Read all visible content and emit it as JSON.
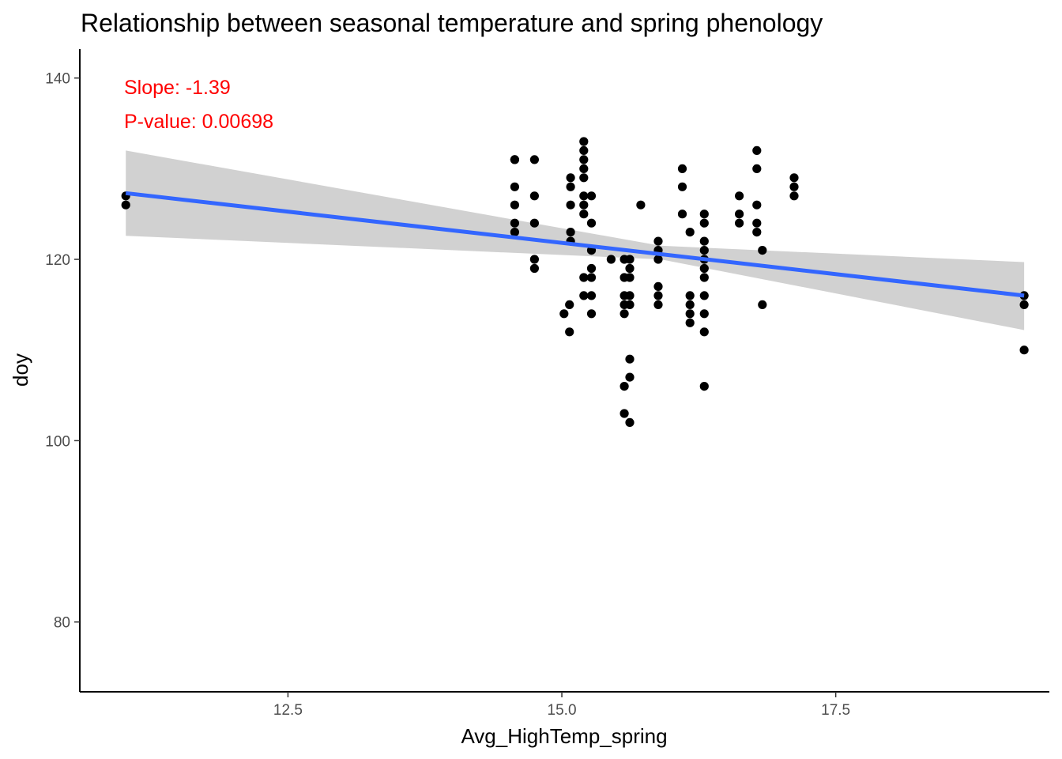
{
  "chart_data": {
    "type": "scatter",
    "title": "Relationship between seasonal temperature and spring phenology",
    "xlabel": "Avg_HighTemp_spring",
    "ylabel": "doy",
    "xlim": [
      10.6,
      19.45
    ],
    "ylim": [
      72.3,
      143.2
    ],
    "xticks": [
      12.5,
      15.0,
      17.5
    ],
    "xtick_labels": [
      "12.5",
      "15.0",
      "17.5"
    ],
    "yticks": [
      80,
      100,
      120,
      140
    ],
    "ytick_labels": [
      "80",
      "100",
      "120",
      "140"
    ],
    "grid": false,
    "colors": {
      "points": "#000000",
      "fit_line": "#3366ff",
      "ribbon": "#cccccc",
      "annotation": "#ff0000"
    },
    "fit": {
      "x": [
        11.02,
        19.22
      ],
      "y": [
        127.3,
        116.0
      ],
      "ci_lower": [
        122.6,
        112.2
      ],
      "ci_upper": [
        132.0,
        119.7
      ],
      "ci_x_mid": 15.9,
      "ci_mid_lower": 120.0,
      "ci_mid_upper": 121.5
    },
    "annotations": [
      {
        "label": "Slope: -1.39"
      },
      {
        "label": "P-value: 0.00698"
      }
    ],
    "points": [
      [
        11.02,
        127
      ],
      [
        11.02,
        126
      ],
      [
        14.57,
        131
      ],
      [
        14.57,
        131
      ],
      [
        14.57,
        128
      ],
      [
        14.57,
        126
      ],
      [
        14.57,
        124
      ],
      [
        14.57,
        123
      ],
      [
        14.75,
        131
      ],
      [
        14.75,
        127
      ],
      [
        14.75,
        124
      ],
      [
        14.75,
        120
      ],
      [
        14.75,
        119
      ],
      [
        15.02,
        114
      ],
      [
        15.07,
        115
      ],
      [
        15.07,
        112
      ],
      [
        15.08,
        129
      ],
      [
        15.08,
        128
      ],
      [
        15.08,
        126
      ],
      [
        15.08,
        123
      ],
      [
        15.08,
        122
      ],
      [
        15.2,
        133
      ],
      [
        15.2,
        132
      ],
      [
        15.2,
        131
      ],
      [
        15.2,
        130
      ],
      [
        15.2,
        129
      ],
      [
        15.2,
        127
      ],
      [
        15.2,
        126
      ],
      [
        15.2,
        125
      ],
      [
        15.2,
        118
      ],
      [
        15.2,
        116
      ],
      [
        15.27,
        127
      ],
      [
        15.27,
        124
      ],
      [
        15.27,
        121
      ],
      [
        15.27,
        119
      ],
      [
        15.27,
        118
      ],
      [
        15.27,
        116
      ],
      [
        15.27,
        114
      ],
      [
        15.45,
        120
      ],
      [
        15.57,
        120
      ],
      [
        15.57,
        118
      ],
      [
        15.57,
        116
      ],
      [
        15.57,
        115
      ],
      [
        15.57,
        114
      ],
      [
        15.57,
        106
      ],
      [
        15.57,
        103
      ],
      [
        15.62,
        120
      ],
      [
        15.62,
        119
      ],
      [
        15.62,
        118
      ],
      [
        15.62,
        116
      ],
      [
        15.62,
        115
      ],
      [
        15.62,
        109
      ],
      [
        15.62,
        107
      ],
      [
        15.62,
        102
      ],
      [
        15.72,
        126
      ],
      [
        15.88,
        122
      ],
      [
        15.88,
        121
      ],
      [
        15.88,
        120
      ],
      [
        15.88,
        117
      ],
      [
        15.88,
        116
      ],
      [
        15.88,
        115
      ],
      [
        16.1,
        130
      ],
      [
        16.1,
        128
      ],
      [
        16.1,
        125
      ],
      [
        16.17,
        123
      ],
      [
        16.17,
        116
      ],
      [
        16.17,
        115
      ],
      [
        16.17,
        114
      ],
      [
        16.17,
        113
      ],
      [
        16.3,
        125
      ],
      [
        16.3,
        124
      ],
      [
        16.3,
        122
      ],
      [
        16.3,
        121
      ],
      [
        16.3,
        120
      ],
      [
        16.3,
        119
      ],
      [
        16.3,
        118
      ],
      [
        16.3,
        116
      ],
      [
        16.3,
        114
      ],
      [
        16.3,
        112
      ],
      [
        16.3,
        106
      ],
      [
        16.62,
        127
      ],
      [
        16.62,
        125
      ],
      [
        16.62,
        124
      ],
      [
        16.78,
        132
      ],
      [
        16.78,
        130
      ],
      [
        16.78,
        126
      ],
      [
        16.78,
        124
      ],
      [
        16.78,
        123
      ],
      [
        16.83,
        121
      ],
      [
        16.83,
        115
      ],
      [
        17.12,
        129
      ],
      [
        17.12,
        128
      ],
      [
        17.12,
        127
      ],
      [
        19.22,
        116
      ],
      [
        19.22,
        115
      ],
      [
        19.22,
        110
      ]
    ]
  }
}
